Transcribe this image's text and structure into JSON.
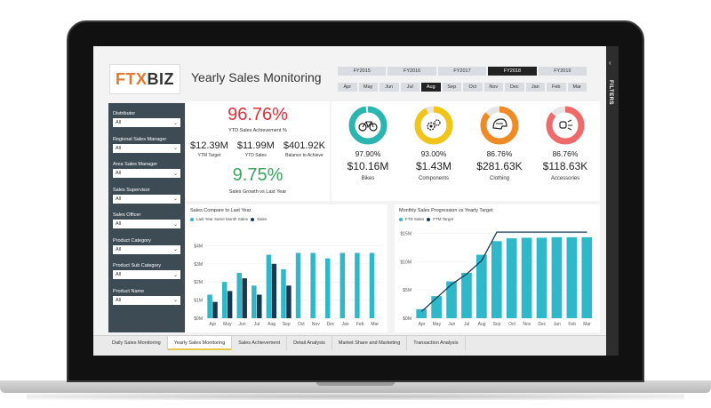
{
  "app": {
    "logo_ftx": "FTX",
    "logo_biz": "BIZ",
    "title": "Yearly Sales Monitoring",
    "filters_label": "FILTERS"
  },
  "fiscal_years": [
    {
      "label": "FY2015",
      "active": false
    },
    {
      "label": "FY2016",
      "active": false
    },
    {
      "label": "FY2017",
      "active": false
    },
    {
      "label": "FY2018",
      "active": true
    },
    {
      "label": "FY2019",
      "active": false
    }
  ],
  "months": [
    {
      "label": "Apr",
      "active": false
    },
    {
      "label": "May",
      "active": false
    },
    {
      "label": "Jun",
      "active": false
    },
    {
      "label": "Jul",
      "active": false
    },
    {
      "label": "Aug",
      "active": true
    },
    {
      "label": "Sep",
      "active": false
    },
    {
      "label": "Oct",
      "active": false
    },
    {
      "label": "Nov",
      "active": false
    },
    {
      "label": "Dec",
      "active": false
    },
    {
      "label": "Jan",
      "active": false
    },
    {
      "label": "Feb",
      "active": false
    },
    {
      "label": "Mar",
      "active": false
    }
  ],
  "slicers": [
    {
      "label": "Distributor",
      "value": "All"
    },
    {
      "label": "Regional Sales Manager",
      "value": "All"
    },
    {
      "label": "Area Sales Manager",
      "value": "All"
    },
    {
      "label": "Sales Supervisor",
      "value": "All"
    },
    {
      "label": "Sales Officer",
      "value": "All"
    },
    {
      "label": "Product Category",
      "value": "All"
    },
    {
      "label": "Product Sub Category",
      "value": "All"
    },
    {
      "label": "Product Name",
      "value": "All"
    }
  ],
  "kpi": {
    "achievement": "96.76%",
    "achievement_label": "YTD Sales Achievement %",
    "ytd_target": "$12.39M",
    "ytd_target_label": "YTM Target",
    "ytd_sales": "$11.99M",
    "ytd_sales_label": "YTD Sales",
    "balance": "$401.92K",
    "balance_label": "Balance to Achieve",
    "growth": "9.75%",
    "growth_label": "Sales Growth vs Last Year"
  },
  "categories": [
    {
      "name": "Bikes",
      "pct": "97.90%",
      "value": "$10.16M",
      "icon": "bicycle-icon",
      "color": "#2bb5b0",
      "fill": 0.979
    },
    {
      "name": "Components",
      "pct": "93.00%",
      "value": "$1.43M",
      "icon": "gears-icon",
      "color": "#f0c419",
      "fill": 0.93
    },
    {
      "name": "Clothing",
      "pct": "86.76%",
      "value": "$281.63K",
      "icon": "helmet-icon",
      "color": "#f08a24",
      "fill": 0.8676
    },
    {
      "name": "Accessories",
      "pct": "86.76%",
      "value": "$118.63K",
      "icon": "bike-light-icon",
      "color": "#f06a6a",
      "fill": 0.8676
    }
  ],
  "chart_data": [
    {
      "type": "bar",
      "title": "Sales Compare to Last Year",
      "categories": [
        "Apr",
        "May",
        "Jun",
        "Jul",
        "Aug",
        "Sep",
        "Oct",
        "Nov",
        "Dec",
        "Jan",
        "Feb",
        "Mar"
      ],
      "ylim": [
        0,
        5
      ],
      "yticks": [
        "$0M",
        "$1M",
        "$2M",
        "$3M",
        "$4M"
      ],
      "series": [
        {
          "name": "Last Year Same Month Sales",
          "color": "#2fb8c9",
          "values": [
            1.3,
            2.0,
            2.5,
            1.8,
            3.5,
            2.7,
            3.6,
            3.6,
            3.3,
            3.6,
            3.6,
            3.6
          ]
        },
        {
          "name": "Sales",
          "color": "#163a52",
          "values": [
            0.9,
            1.5,
            2.2,
            1.3,
            3.0,
            1.8,
            null,
            null,
            null,
            null,
            null,
            null
          ]
        }
      ]
    },
    {
      "type": "bar",
      "title": "Monthly Sales Progression vs Yearly Target",
      "categories": [
        "Apr",
        "May",
        "Jun",
        "Jul",
        "Aug",
        "Sep",
        "Oct",
        "Nov",
        "Dec",
        "Jan",
        "Feb",
        "Mar"
      ],
      "ylim": [
        0,
        16
      ],
      "yticks": [
        "$0M",
        "$5M",
        "$10M",
        "$15M"
      ],
      "series": [
        {
          "name": "FTD Sales",
          "color": "#2fb8c9",
          "values": [
            1.6,
            3.9,
            6.5,
            8.0,
            11.2,
            13.6,
            14.1,
            14.2,
            14.2,
            14.3,
            14.3,
            14.3
          ]
        },
        {
          "name": "FTM Target",
          "color": "#163a52",
          "type": "line",
          "values": [
            1.2,
            3.6,
            6.0,
            7.8,
            10.2,
            15.2,
            15.2,
            15.2,
            15.2,
            15.2,
            15.2,
            15.2
          ]
        }
      ]
    }
  ],
  "tabs": [
    {
      "label": "Daily Sales Monitoring",
      "active": false
    },
    {
      "label": "Yearly Sales Monitoring",
      "active": true
    },
    {
      "label": "Sales Achievement",
      "active": false
    },
    {
      "label": "Detail Analysis",
      "active": false
    },
    {
      "label": "Market Share and Marketing",
      "active": false
    },
    {
      "label": "Transaction Analysis",
      "active": false
    }
  ]
}
